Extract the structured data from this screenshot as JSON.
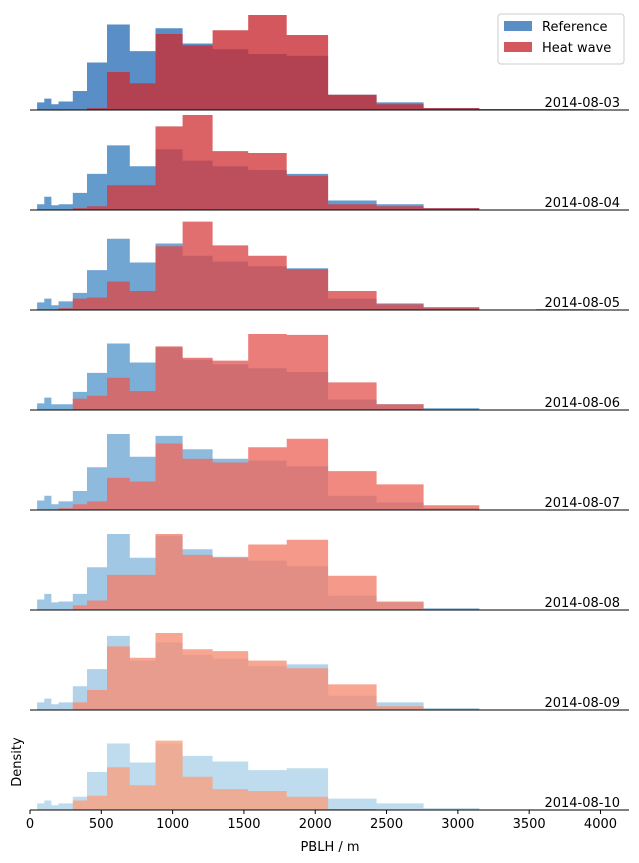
{
  "chart_data": {
    "type": "histogram",
    "xlabel": "PBLH / m",
    "ylabel": "Density",
    "xlim": [
      0,
      4200
    ],
    "xticks": [
      0,
      500,
      1000,
      1500,
      2000,
      2500,
      3000,
      3500,
      4000
    ],
    "legend": {
      "position": "top-right",
      "entries": [
        "Reference",
        "Heat wave"
      ]
    },
    "bin_edges": [
      50,
      100,
      150,
      200,
      300,
      400,
      540,
      700,
      880,
      1070,
      1280,
      1530,
      1800,
      2090,
      2430,
      2760,
      3150,
      3550,
      3950
    ],
    "panels": [
      {
        "date": "2014-08-03",
        "ref_color": "#2f73b8",
        "hw_color": "#c82d33",
        "reference": [
          8,
          12,
          6,
          9,
          20,
          50,
          90,
          62,
          86,
          70,
          64,
          59,
          57,
          16,
          8,
          2,
          0,
          0
        ],
        "heatwave": [
          0,
          0,
          0,
          0,
          0,
          2,
          40,
          28,
          80,
          68,
          84,
          100,
          79,
          16,
          6,
          2,
          1,
          1
        ]
      },
      {
        "date": "2014-08-04",
        "ref_color": "#3d82c1",
        "hw_color": "#d23c3f",
        "reference": [
          6,
          14,
          5,
          6,
          18,
          38,
          68,
          46,
          64,
          52,
          46,
          42,
          38,
          10,
          6,
          2,
          0,
          0
        ],
        "heatwave": [
          0,
          0,
          0,
          0,
          2,
          4,
          26,
          26,
          88,
          100,
          62,
          60,
          36,
          6,
          4,
          2,
          0,
          0
        ]
      },
      {
        "date": "2014-08-05",
        "ref_color": "#4d8fc7",
        "hw_color": "#da4b4b",
        "reference": [
          8,
          12,
          5,
          9,
          18,
          42,
          75,
          50,
          70,
          57,
          51,
          46,
          44,
          12,
          7,
          2,
          0,
          0
        ],
        "heatwave": [
          0,
          0,
          0,
          2,
          12,
          13,
          30,
          20,
          67,
          93,
          68,
          57,
          43,
          20,
          6,
          3,
          0,
          1
        ]
      },
      {
        "date": "2014-08-06",
        "ref_color": "#5b9bcd",
        "hw_color": "#e55c58",
        "reference": [
          7,
          13,
          6,
          6,
          19,
          39,
          70,
          50,
          66,
          53,
          48,
          44,
          40,
          11,
          6,
          2,
          0,
          0
        ],
        "heatwave": [
          0,
          0,
          0,
          0,
          12,
          15,
          34,
          20,
          67,
          55,
          52,
          80,
          79,
          29,
          6,
          0,
          0,
          0
        ]
      },
      {
        "date": "2014-08-07",
        "ref_color": "#72aad4",
        "hw_color": "#ee6b61",
        "reference": [
          10,
          15,
          6,
          9,
          20,
          45,
          80,
          56,
          78,
          64,
          54,
          52,
          46,
          15,
          8,
          2,
          0,
          0
        ],
        "heatwave": [
          0,
          0,
          0,
          2,
          6,
          9,
          34,
          30,
          70,
          54,
          50,
          66,
          75,
          41,
          27,
          5,
          0,
          0
        ]
      },
      {
        "date": "2014-08-08",
        "ref_color": "#88b9dc",
        "hw_color": "#f37f6d",
        "reference": [
          11,
          17,
          8,
          9,
          17,
          45,
          80,
          55,
          78,
          64,
          56,
          52,
          46,
          15,
          8,
          2,
          0,
          0
        ],
        "heatwave": [
          0,
          0,
          0,
          0,
          5,
          10,
          37,
          37,
          80,
          58,
          55,
          69,
          74,
          36,
          9,
          1,
          0,
          0
        ]
      },
      {
        "date": "2014-08-09",
        "ref_color": "#9dc7e3",
        "hw_color": "#f68f76",
        "reference": [
          8,
          12,
          6,
          8,
          25,
          43,
          78,
          52,
          71,
          58,
          54,
          46,
          48,
          15,
          8,
          2,
          0,
          0
        ],
        "heatwave": [
          0,
          0,
          0,
          0,
          8,
          21,
          67,
          55,
          81,
          64,
          62,
          52,
          44,
          27,
          4,
          1,
          0,
          0
        ]
      },
      {
        "date": "2014-08-10",
        "ref_color": "#aed3ea",
        "hw_color": "#f9a080",
        "reference": [
          7,
          10,
          5,
          7,
          14,
          40,
          70,
          50,
          70,
          57,
          51,
          42,
          44,
          12,
          7,
          2,
          0,
          0
        ],
        "heatwave": [
          0,
          0,
          0,
          0,
          10,
          15,
          45,
          26,
          73,
          35,
          22,
          20,
          14,
          1,
          0,
          0,
          0,
          0
        ]
      }
    ]
  }
}
